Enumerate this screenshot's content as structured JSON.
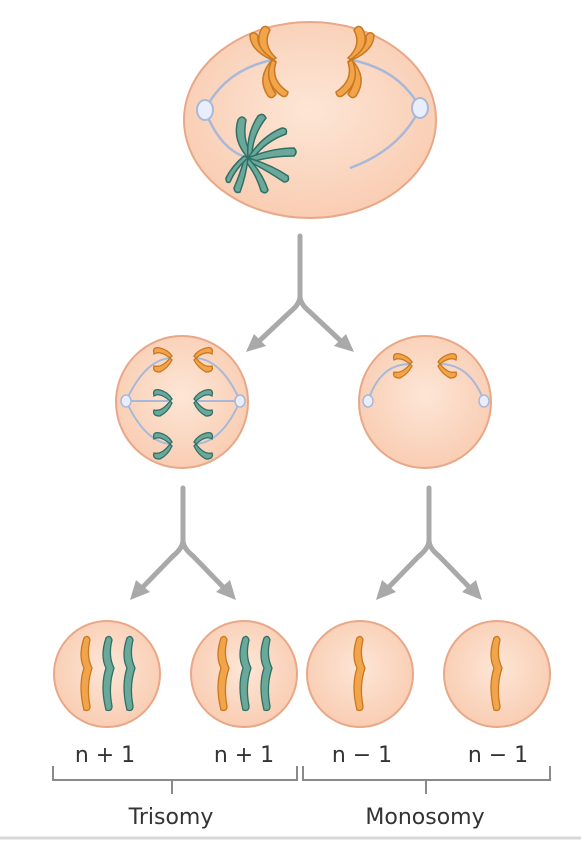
{
  "labels": {
    "cell_1": "n + 1",
    "cell_2": "n + 1",
    "cell_3": "n − 1",
    "cell_4": "n − 1",
    "group_left": "Trisomy",
    "group_right": "Monosomy"
  },
  "colors": {
    "cell_fill": "#fbd9c4",
    "cell_stroke": "#e8a888",
    "orange": "#f2a44a",
    "orange_stroke": "#c97820",
    "green": "#6aa89a",
    "green_stroke": "#2f6f66",
    "spindle": "#aab8d8",
    "arrow": "#a9a9a9",
    "bracket": "#8a8a8a",
    "text": "#333333"
  }
}
